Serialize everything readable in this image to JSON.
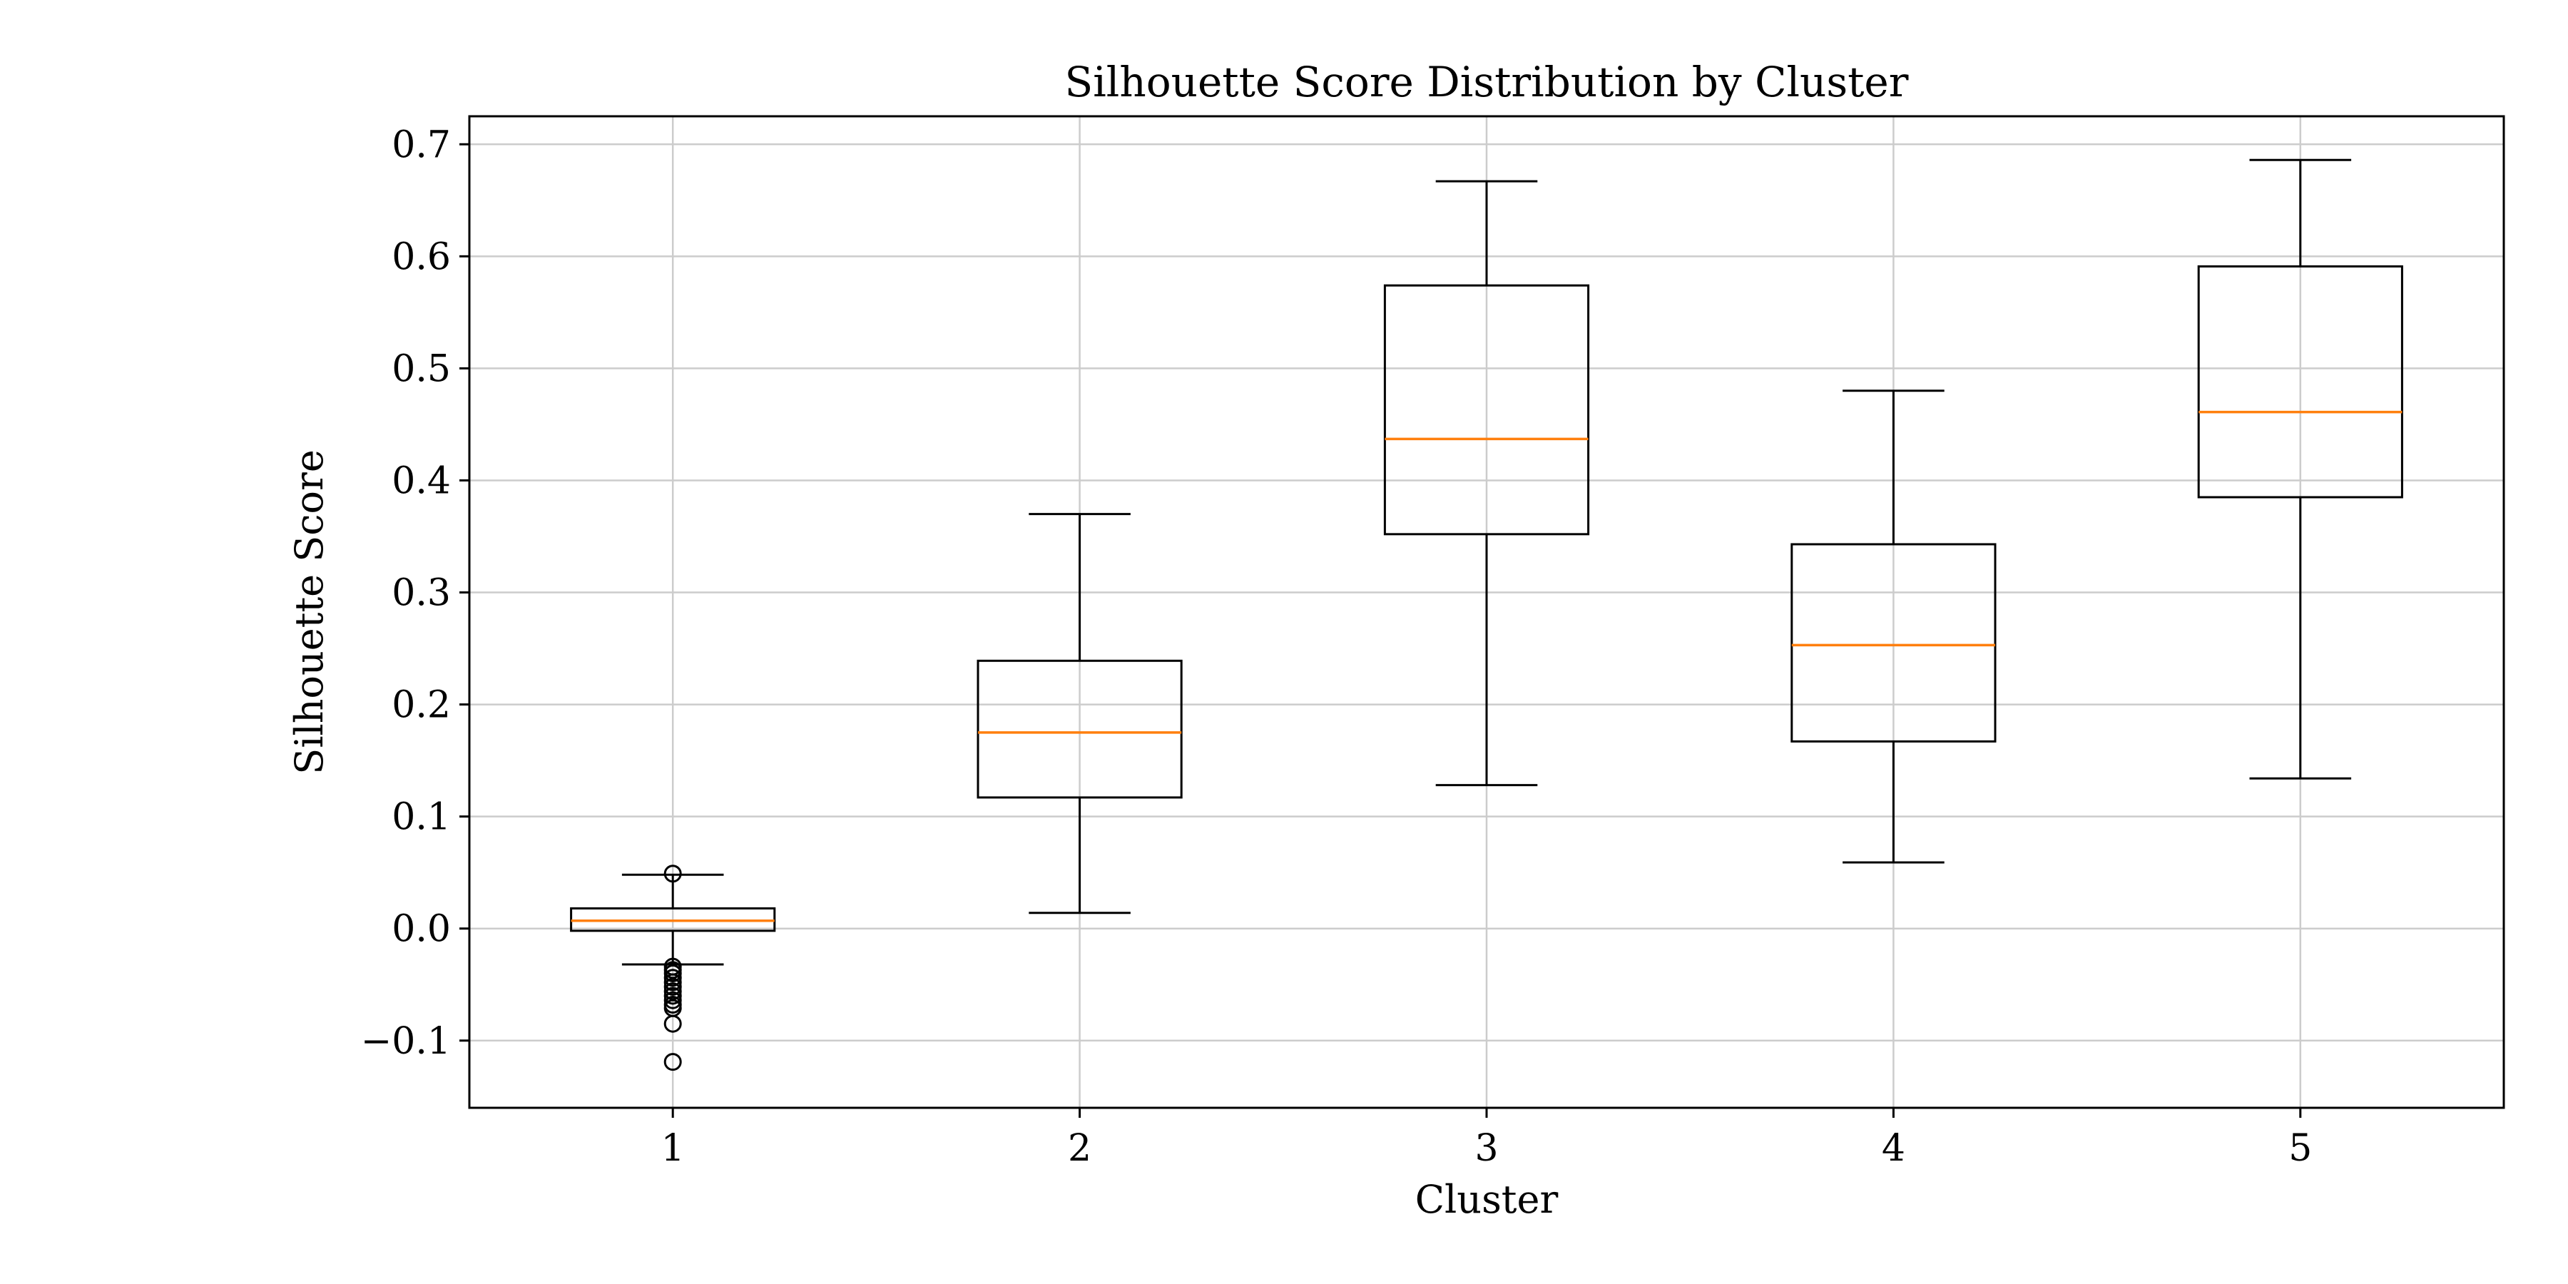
{
  "chart_data": {
    "type": "box",
    "title": "Silhouette Score Distribution by Cluster",
    "xlabel": "Cluster",
    "ylabel": "Silhouette Score",
    "categories": [
      "1",
      "2",
      "3",
      "4",
      "5"
    ],
    "ylim": [
      -0.16,
      0.725
    ],
    "yticks": [
      -0.1,
      0.0,
      0.1,
      0.2,
      0.3,
      0.4,
      0.5,
      0.6,
      0.7
    ],
    "ytick_labels": [
      "−0.1",
      "0.0",
      "0.1",
      "0.2",
      "0.3",
      "0.4",
      "0.5",
      "0.6",
      "0.7"
    ],
    "grid": true,
    "boxes": [
      {
        "category": "1",
        "whisker_low": -0.032,
        "q1": -0.002,
        "median": 0.007,
        "q3": 0.018,
        "whisker_high": 0.048,
        "outliers": [
          0.049,
          -0.034,
          -0.037,
          -0.04,
          -0.044,
          -0.048,
          -0.052,
          -0.056,
          -0.06,
          -0.064,
          -0.068,
          -0.071,
          -0.085,
          -0.119
        ]
      },
      {
        "category": "2",
        "whisker_low": 0.014,
        "q1": 0.117,
        "median": 0.175,
        "q3": 0.239,
        "whisker_high": 0.37,
        "outliers": []
      },
      {
        "category": "3",
        "whisker_low": 0.128,
        "q1": 0.352,
        "median": 0.437,
        "q3": 0.574,
        "whisker_high": 0.667,
        "outliers": []
      },
      {
        "category": "4",
        "whisker_low": 0.059,
        "q1": 0.167,
        "median": 0.253,
        "q3": 0.343,
        "whisker_high": 0.48,
        "outliers": []
      },
      {
        "category": "5",
        "whisker_low": 0.134,
        "q1": 0.385,
        "median": 0.461,
        "q3": 0.591,
        "whisker_high": 0.686,
        "outliers": []
      }
    ],
    "colors": {
      "box": "#000000",
      "median": "#ff7f0e",
      "grid": "#cccccc",
      "outlier": "#000000"
    }
  }
}
